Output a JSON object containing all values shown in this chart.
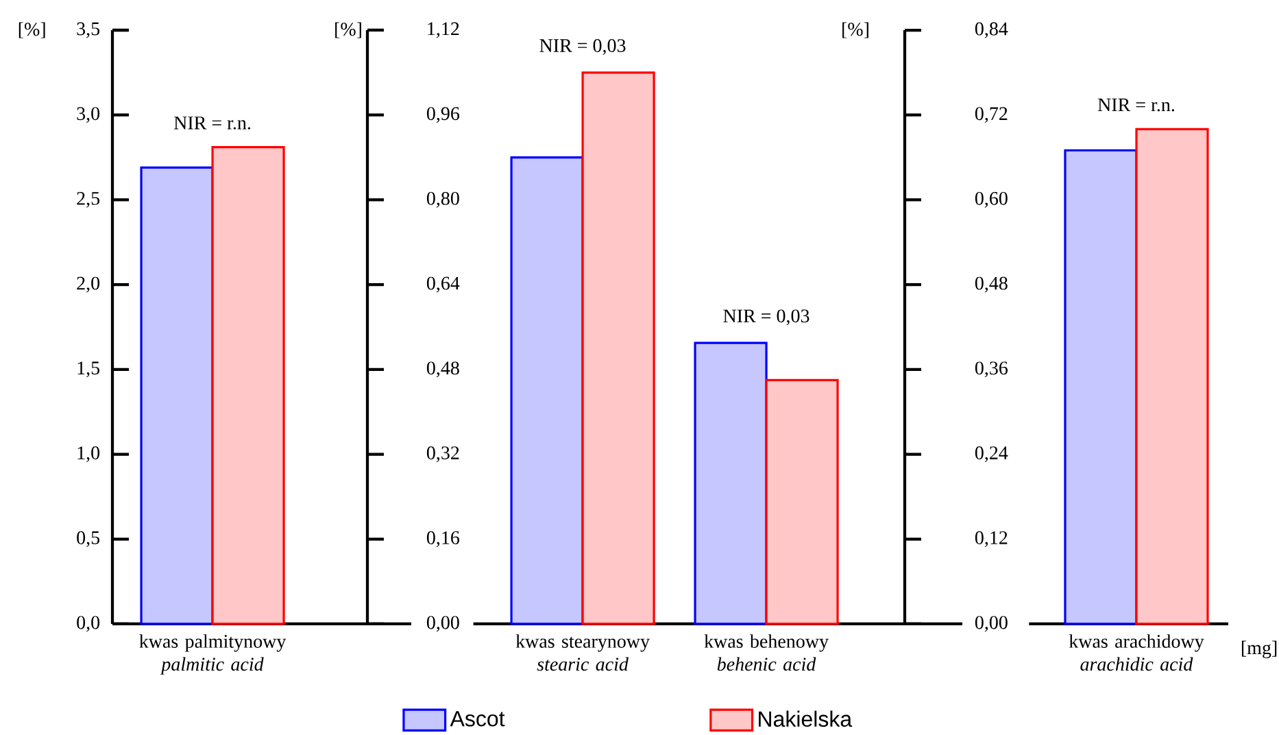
{
  "chart_data": [
    {
      "type": "bar",
      "ylabel": "[%]",
      "categories": [
        "kwas palmitynowy *palmitic acid*"
      ],
      "series": [
        {
          "color": "#0000ff",
          "values": [
            2.69
          ]
        },
        {
          "color": "#ff0000",
          "values": [
            2.81
          ]
        }
      ],
      "ylim": [
        0,
        3.5
      ],
      "yticks": [
        {
          "value": 0,
          "label": "0,0"
        },
        {
          "value": 0.5,
          "label": "0,5"
        },
        {
          "value": 1,
          "label": "1,0"
        },
        {
          "value": 1.5,
          "label": "1,5"
        },
        {
          "value": 2,
          "label": "2,0"
        },
        {
          "value": 2.5,
          "label": "2,5"
        },
        {
          "value": 3,
          "label": "3,0"
        },
        {
          "value": 3.5,
          "label": "3,5"
        }
      ],
      "annotations": [
        "NIR = r.n."
      ]
    },
    {
      "type": "bar",
      "ylabel": "[%]",
      "categories": [
        "kwas stearynowy *stearic acid*",
        "kwas behenowy *behenic acid*"
      ],
      "series": [
        {
          "name": "Ascot",
          "color": "#0000ff",
          "values": [
            0.88,
            0.53
          ]
        },
        {
          "name": "Nakielska",
          "color": "#ff0000",
          "values": [
            1.04,
            0.46
          ]
        }
      ],
      "ylim": [
        0,
        1.12
      ],
      "yticks": [
        {
          "value": 0,
          "label": "0,00"
        },
        {
          "value": 0.16,
          "label": "0,16"
        },
        {
          "value": 0.32,
          "label": "0,32"
        },
        {
          "value": 0.48,
          "label": "0,48"
        },
        {
          "value": 0.64,
          "label": "0,64"
        },
        {
          "value": 0.8,
          "label": "0,80"
        },
        {
          "value": 0.96,
          "label": "0,96"
        },
        {
          "value": 1.12,
          "label": "1,12"
        }
      ],
      "annotations": [
        "NIR = 0,03",
        "NIR = 0,03"
      ],
      "legend": "bottom"
    },
    {
      "type": "bar",
      "ylabel": "[%]",
      "xlabel": "[mg]",
      "categories": [
        "kwas arachidowy *arachidic acid*"
      ],
      "series": [
        {
          "color": "#0000ff",
          "values": [
            0.67
          ]
        },
        {
          "color": "#ff0000",
          "values": [
            0.7
          ]
        }
      ],
      "ylim": [
        0,
        0.84
      ],
      "yticks": [
        {
          "value": 0,
          "label": "0,00"
        },
        {
          "value": 0.12,
          "label": "0,12"
        },
        {
          "value": 0.24,
          "label": "0,24"
        },
        {
          "value": 0.36,
          "label": "0,36"
        },
        {
          "value": 0.48,
          "label": "0,48"
        },
        {
          "value": 0.6,
          "label": "0,60"
        },
        {
          "value": 0.72,
          "label": "0,72"
        },
        {
          "value": 0.84,
          "label": "0,84"
        }
      ],
      "annotations": [
        "NIR = r.n."
      ]
    }
  ]
}
